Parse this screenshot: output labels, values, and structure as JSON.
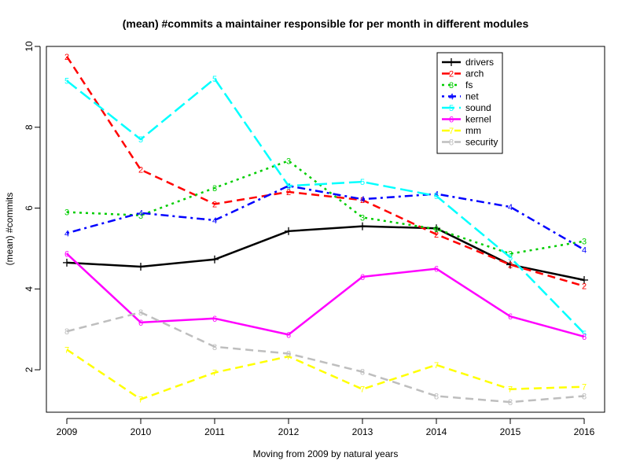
{
  "chart_data": {
    "type": "line",
    "title": "(mean) #commits a maintainer responsible for per month in different modules",
    "xlabel": "Moving from 2009 by natural years",
    "ylabel": "(mean) #commits",
    "x": [
      2009,
      2010,
      2011,
      2012,
      2013,
      2014,
      2015,
      2016
    ],
    "xticks": [
      "2009",
      "2010",
      "2011",
      "2012",
      "2013",
      "2014",
      "2015",
      "2016"
    ],
    "ylim": [
      0.95,
      10
    ],
    "yticks": [
      "2",
      "4",
      "6",
      "8",
      "10"
    ],
    "grid": false,
    "legend_position": "top-right",
    "series": [
      {
        "name": "drivers",
        "marker": "+",
        "color": "#000000",
        "dash": "solid",
        "values": [
          4.65,
          4.55,
          4.73,
          5.43,
          5.55,
          5.5,
          4.6,
          4.22
        ]
      },
      {
        "name": "arch",
        "marker": "2",
        "color": "#ff0000",
        "dash": "dashed",
        "values": [
          9.75,
          6.95,
          6.1,
          6.4,
          6.2,
          5.35,
          4.6,
          4.07
        ]
      },
      {
        "name": "fs",
        "marker": "3",
        "color": "#00cd00",
        "dash": "dotted",
        "values": [
          5.9,
          5.82,
          6.5,
          7.17,
          5.77,
          5.48,
          4.87,
          5.18
        ]
      },
      {
        "name": "net",
        "marker": "4",
        "color": "#0000ff",
        "dash": "dotdash",
        "values": [
          5.38,
          5.88,
          5.7,
          6.55,
          6.22,
          6.35,
          6.03,
          4.97
        ]
      },
      {
        "name": "sound",
        "marker": "5",
        "color": "#00ffff",
        "dash": "longdash",
        "values": [
          9.15,
          7.7,
          9.2,
          6.55,
          6.65,
          6.3,
          4.78,
          2.9
        ]
      },
      {
        "name": "kernel",
        "marker": "6",
        "color": "#ff00ff",
        "dash": "solid",
        "values": [
          4.87,
          3.17,
          3.27,
          2.87,
          4.3,
          4.5,
          3.32,
          2.82
        ]
      },
      {
        "name": "mm",
        "marker": "7",
        "color": "#ffff00",
        "dash": "dashed",
        "values": [
          2.5,
          1.27,
          1.93,
          2.33,
          1.52,
          2.12,
          1.52,
          1.58
        ]
      },
      {
        "name": "security",
        "marker": "8",
        "color": "#bebebe",
        "dash": "dashed",
        "values": [
          2.95,
          3.42,
          2.57,
          2.4,
          1.95,
          1.35,
          1.2,
          1.35
        ]
      }
    ]
  }
}
